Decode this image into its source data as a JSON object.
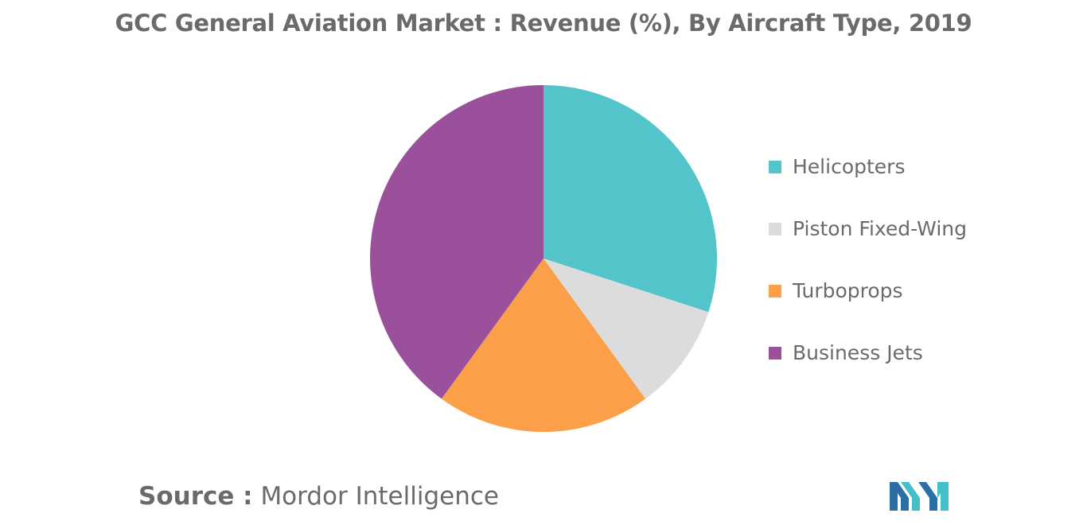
{
  "chart_data": {
    "type": "pie",
    "title": "GCC General Aviation Market : Revenue (%), By Aircraft Type, 2019",
    "categories": [
      "Helicopters",
      "Piston Fixed-Wing",
      "Turboprops",
      "Business Jets"
    ],
    "values": [
      30,
      10,
      20,
      40
    ],
    "colors": [
      "#52c4ca",
      "#dcdcdc",
      "#fba049",
      "#9b509c"
    ],
    "start_angle_deg": 0,
    "direction": "clockwise",
    "legend": "right"
  },
  "source": {
    "label": "Source :",
    "value": "Mordor Intelligence"
  },
  "logo": {
    "icon": "mordor-intelligence-logo-icon",
    "colors": [
      "#2a6fa8",
      "#45c0c6"
    ]
  }
}
